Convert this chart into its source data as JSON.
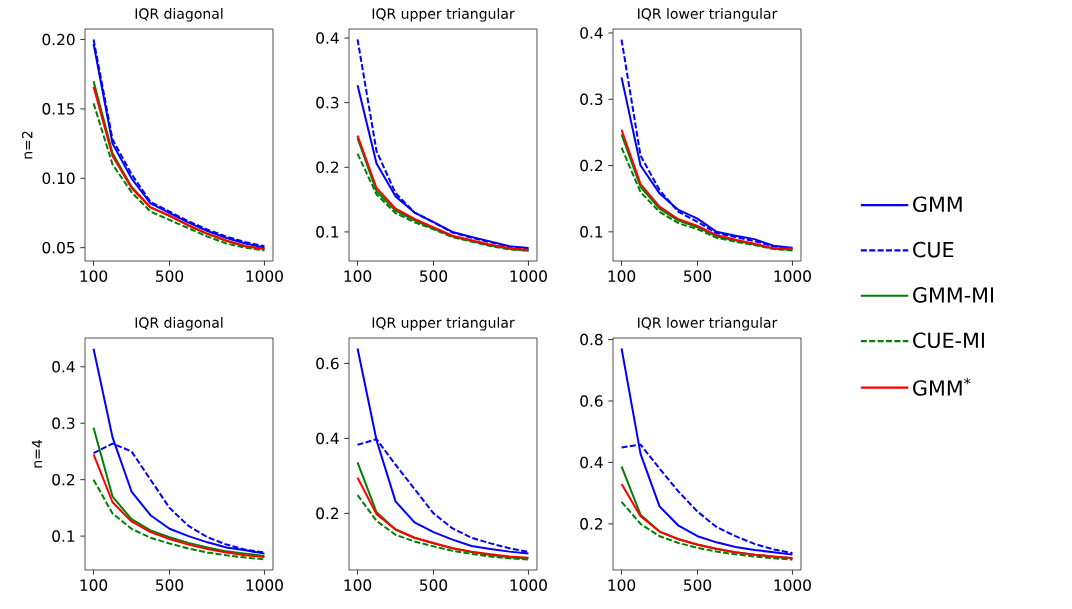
{
  "chart_data": [
    {
      "type": "line",
      "title": "IQR diagonal",
      "ylabel": "n=2",
      "x": [
        100,
        200,
        300,
        400,
        500,
        600,
        700,
        800,
        900,
        1000
      ],
      "xlim": [
        55,
        1045
      ],
      "xticks": [
        100,
        500,
        1000
      ],
      "ylim": [
        0.0404,
        0.2076
      ],
      "yticks": [
        0.05,
        {
          "value": 0.1,
          "label": "0.10"
        },
        0.15,
        {
          "value": 0.2,
          "label": "0.20"
        }
      ],
      "series": [
        {
          "color": "#0000ff",
          "line_style": "solid",
          "values": [
            0.197,
            0.125,
            0.1,
            0.082,
            0.075,
            0.068,
            0.062,
            0.057,
            0.053,
            0.05
          ]
        },
        {
          "color": "#0000ff",
          "line_style": "dashed",
          "values": [
            0.2,
            0.128,
            0.103,
            0.083,
            0.076,
            0.069,
            0.063,
            0.058,
            0.054,
            0.051
          ]
        },
        {
          "color": "#008000",
          "line_style": "solid",
          "values": [
            0.17,
            0.118,
            0.094,
            0.079,
            0.073,
            0.066,
            0.06,
            0.055,
            0.051,
            0.049
          ]
        },
        {
          "color": "#008000",
          "line_style": "dashed",
          "values": [
            0.154,
            0.11,
            0.09,
            0.076,
            0.07,
            0.064,
            0.058,
            0.053,
            0.05,
            0.048
          ]
        },
        {
          "color": "#ff0000",
          "line_style": "solid",
          "values": [
            0.166,
            0.116,
            0.093,
            0.079,
            0.073,
            0.066,
            0.06,
            0.055,
            0.051,
            0.049
          ]
        }
      ]
    },
    {
      "type": "line",
      "title": "IQR upper triangular",
      "x": [
        100,
        200,
        300,
        400,
        500,
        600,
        700,
        800,
        900,
        1000
      ],
      "xlim": [
        55,
        1045
      ],
      "xticks": [
        100,
        500,
        1000
      ],
      "ylim": [
        0.055,
        0.414
      ],
      "yticks": [
        0.1,
        0.2,
        0.3,
        0.4
      ],
      "series": [
        {
          "color": "#0000ff",
          "line_style": "solid",
          "values": [
            0.327,
            0.206,
            0.155,
            0.13,
            0.115,
            0.1,
            0.092,
            0.085,
            0.078,
            0.075
          ]
        },
        {
          "color": "#0000ff",
          "line_style": "dashed",
          "values": [
            0.398,
            0.225,
            0.16,
            0.13,
            0.115,
            0.099,
            0.091,
            0.084,
            0.077,
            0.074
          ]
        },
        {
          "color": "#008000",
          "line_style": "solid",
          "values": [
            0.245,
            0.163,
            0.133,
            0.118,
            0.105,
            0.093,
            0.086,
            0.079,
            0.074,
            0.071
          ]
        },
        {
          "color": "#008000",
          "line_style": "dashed",
          "values": [
            0.221,
            0.158,
            0.129,
            0.115,
            0.104,
            0.092,
            0.085,
            0.078,
            0.073,
            0.071
          ]
        },
        {
          "color": "#ff0000",
          "line_style": "solid",
          "values": [
            0.249,
            0.168,
            0.136,
            0.12,
            0.107,
            0.094,
            0.087,
            0.08,
            0.075,
            0.072
          ]
        }
      ]
    },
    {
      "type": "line",
      "title": "IQR lower triangular",
      "legend": "right",
      "x": [
        100,
        200,
        300,
        400,
        500,
        600,
        700,
        800,
        900,
        1000
      ],
      "xlim": [
        55,
        1045
      ],
      "xticks": [
        100,
        500,
        1000
      ],
      "ylim": [
        0.056,
        0.406
      ],
      "yticks": [
        0.1,
        0.2,
        0.3,
        0.4
      ],
      "series": [
        {
          "name": "GMM",
          "color": "#0000ff",
          "line_style": "solid",
          "values": [
            0.333,
            0.2,
            0.158,
            0.133,
            0.12,
            0.1,
            0.094,
            0.089,
            0.079,
            0.076
          ]
        },
        {
          "name": "CUE",
          "color": "#0000ff",
          "line_style": "dashed",
          "values": [
            0.39,
            0.215,
            0.163,
            0.13,
            0.115,
            0.098,
            0.092,
            0.086,
            0.078,
            0.075
          ]
        },
        {
          "name": "GMM-MI",
          "color": "#008000",
          "line_style": "solid",
          "values": [
            0.247,
            0.168,
            0.135,
            0.117,
            0.107,
            0.093,
            0.087,
            0.081,
            0.075,
            0.073
          ]
        },
        {
          "name": "CUE-MI",
          "color": "#008000",
          "line_style": "dashed",
          "values": [
            0.227,
            0.16,
            0.13,
            0.113,
            0.104,
            0.091,
            0.085,
            0.08,
            0.074,
            0.072
          ]
        },
        {
          "name": "GMM$^{*}$",
          "color": "#ff0000",
          "line_style": "solid",
          "values": [
            0.254,
            0.172,
            0.138,
            0.119,
            0.109,
            0.095,
            0.088,
            0.082,
            0.075,
            0.075
          ]
        }
      ]
    },
    {
      "type": "line",
      "title": "IQR diagonal",
      "ylabel": "n=4",
      "x": [
        100,
        200,
        300,
        400,
        500,
        600,
        700,
        800,
        900,
        1000
      ],
      "xlim": [
        55,
        1045
      ],
      "xticks": [
        100,
        500,
        1000
      ],
      "ylim": [
        0.04,
        0.451
      ],
      "yticks": [
        0.1,
        0.2,
        0.3,
        0.4
      ],
      "series": [
        {
          "color": "#0000ff",
          "line_style": "solid",
          "values": [
            0.432,
            0.275,
            0.179,
            0.137,
            0.113,
            0.1,
            0.089,
            0.08,
            0.075,
            0.069
          ]
        },
        {
          "color": "#0000ff",
          "line_style": "dashed",
          "values": [
            0.247,
            0.264,
            0.25,
            0.2,
            0.15,
            0.118,
            0.098,
            0.085,
            0.076,
            0.071
          ]
        },
        {
          "color": "#008000",
          "line_style": "solid",
          "values": [
            0.292,
            0.17,
            0.13,
            0.11,
            0.098,
            0.088,
            0.08,
            0.073,
            0.069,
            0.065
          ]
        },
        {
          "color": "#008000",
          "line_style": "dashed",
          "values": [
            0.2,
            0.14,
            0.113,
            0.097,
            0.087,
            0.078,
            0.071,
            0.066,
            0.062,
            0.059
          ]
        },
        {
          "color": "#ff0000",
          "line_style": "solid",
          "values": [
            0.245,
            0.16,
            0.126,
            0.107,
            0.095,
            0.085,
            0.077,
            0.071,
            0.066,
            0.063
          ]
        }
      ]
    },
    {
      "type": "line",
      "title": "IQR upper triangular",
      "x": [
        100,
        200,
        300,
        400,
        500,
        600,
        700,
        800,
        900,
        1000
      ],
      "xlim": [
        55,
        1045
      ],
      "xticks": [
        100,
        500,
        1000
      ],
      "ylim": [
        0.049,
        0.668
      ],
      "yticks": [
        0.2,
        0.4,
        0.6
      ],
      "series": [
        {
          "color": "#0000ff",
          "line_style": "solid",
          "values": [
            0.64,
            0.395,
            0.232,
            0.176,
            0.15,
            0.13,
            0.113,
            0.105,
            0.098,
            0.093
          ]
        },
        {
          "color": "#0000ff",
          "line_style": "dashed",
          "values": [
            0.383,
            0.398,
            0.33,
            0.265,
            0.2,
            0.16,
            0.135,
            0.12,
            0.107,
            0.097
          ]
        },
        {
          "color": "#008000",
          "line_style": "solid",
          "values": [
            0.336,
            0.203,
            0.157,
            0.135,
            0.12,
            0.107,
            0.097,
            0.089,
            0.083,
            0.08
          ]
        },
        {
          "color": "#008000",
          "line_style": "dashed",
          "values": [
            0.249,
            0.18,
            0.143,
            0.125,
            0.112,
            0.1,
            0.092,
            0.085,
            0.08,
            0.077
          ]
        },
        {
          "color": "#ff0000",
          "line_style": "solid",
          "values": [
            0.295,
            0.198,
            0.157,
            0.135,
            0.121,
            0.107,
            0.098,
            0.091,
            0.085,
            0.082
          ]
        }
      ]
    },
    {
      "type": "line",
      "title": "IQR lower triangular",
      "x": [
        100,
        200,
        300,
        400,
        500,
        600,
        700,
        800,
        900,
        1000
      ],
      "xlim": [
        55,
        1045
      ],
      "xticks": [
        100,
        500,
        1000
      ],
      "ylim": [
        0.05,
        0.805
      ],
      "yticks": [
        0.2,
        0.4,
        0.6,
        0.8
      ],
      "series": [
        {
          "color": "#0000ff",
          "line_style": "solid",
          "values": [
            0.771,
            0.428,
            0.257,
            0.194,
            0.16,
            0.14,
            0.125,
            0.115,
            0.108,
            0.1
          ]
        },
        {
          "color": "#0000ff",
          "line_style": "dashed",
          "values": [
            0.449,
            0.458,
            0.38,
            0.305,
            0.24,
            0.19,
            0.16,
            0.135,
            0.117,
            0.105
          ]
        },
        {
          "color": "#008000",
          "line_style": "solid",
          "values": [
            0.387,
            0.23,
            0.175,
            0.15,
            0.132,
            0.118,
            0.108,
            0.1,
            0.093,
            0.088
          ]
        },
        {
          "color": "#008000",
          "line_style": "dashed",
          "values": [
            0.272,
            0.2,
            0.16,
            0.138,
            0.122,
            0.11,
            0.101,
            0.094,
            0.088,
            0.084
          ]
        },
        {
          "color": "#ff0000",
          "line_style": "solid",
          "values": [
            0.33,
            0.225,
            0.175,
            0.15,
            0.133,
            0.119,
            0.108,
            0.1,
            0.094,
            0.089
          ]
        }
      ]
    }
  ]
}
